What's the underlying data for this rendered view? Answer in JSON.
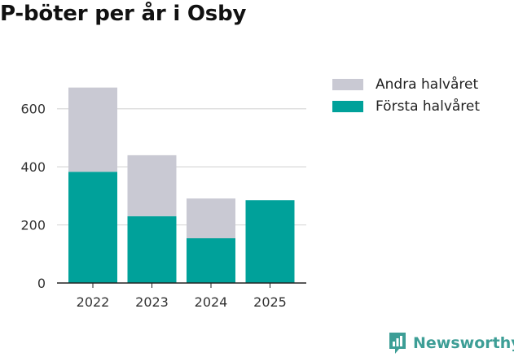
{
  "title": "P-böter per år i Osby",
  "colors": {
    "andra": "#c9c9d3",
    "forsta": "#00a19a",
    "grid": "#d9d9d9",
    "axis": "#222222",
    "brand": "#3d9e96"
  },
  "legend": {
    "items": [
      {
        "label": "Andra halvåret",
        "color": "#c9c9d3"
      },
      {
        "label": "Första halvåret",
        "color": "#00a19a"
      }
    ]
  },
  "logo": {
    "text": "Newsworthy",
    "icon": "newsworthy-chart-logo-icon"
  },
  "chart_data": {
    "type": "bar",
    "stacked": true,
    "title": "P-böter per år i Osby",
    "xlabel": "",
    "ylabel": "",
    "categories": [
      "2022",
      "2023",
      "2024",
      "2025"
    ],
    "series": [
      {
        "name": "Första halvåret",
        "values": [
          383,
          230,
          154,
          285
        ]
      },
      {
        "name": "Andra halvåret",
        "values": [
          290,
          210,
          137,
          0
        ]
      }
    ],
    "ylim": [
      0,
      700
    ],
    "yticks": [
      0,
      200,
      400,
      600
    ],
    "grid": true,
    "legend_position": "top-right"
  }
}
